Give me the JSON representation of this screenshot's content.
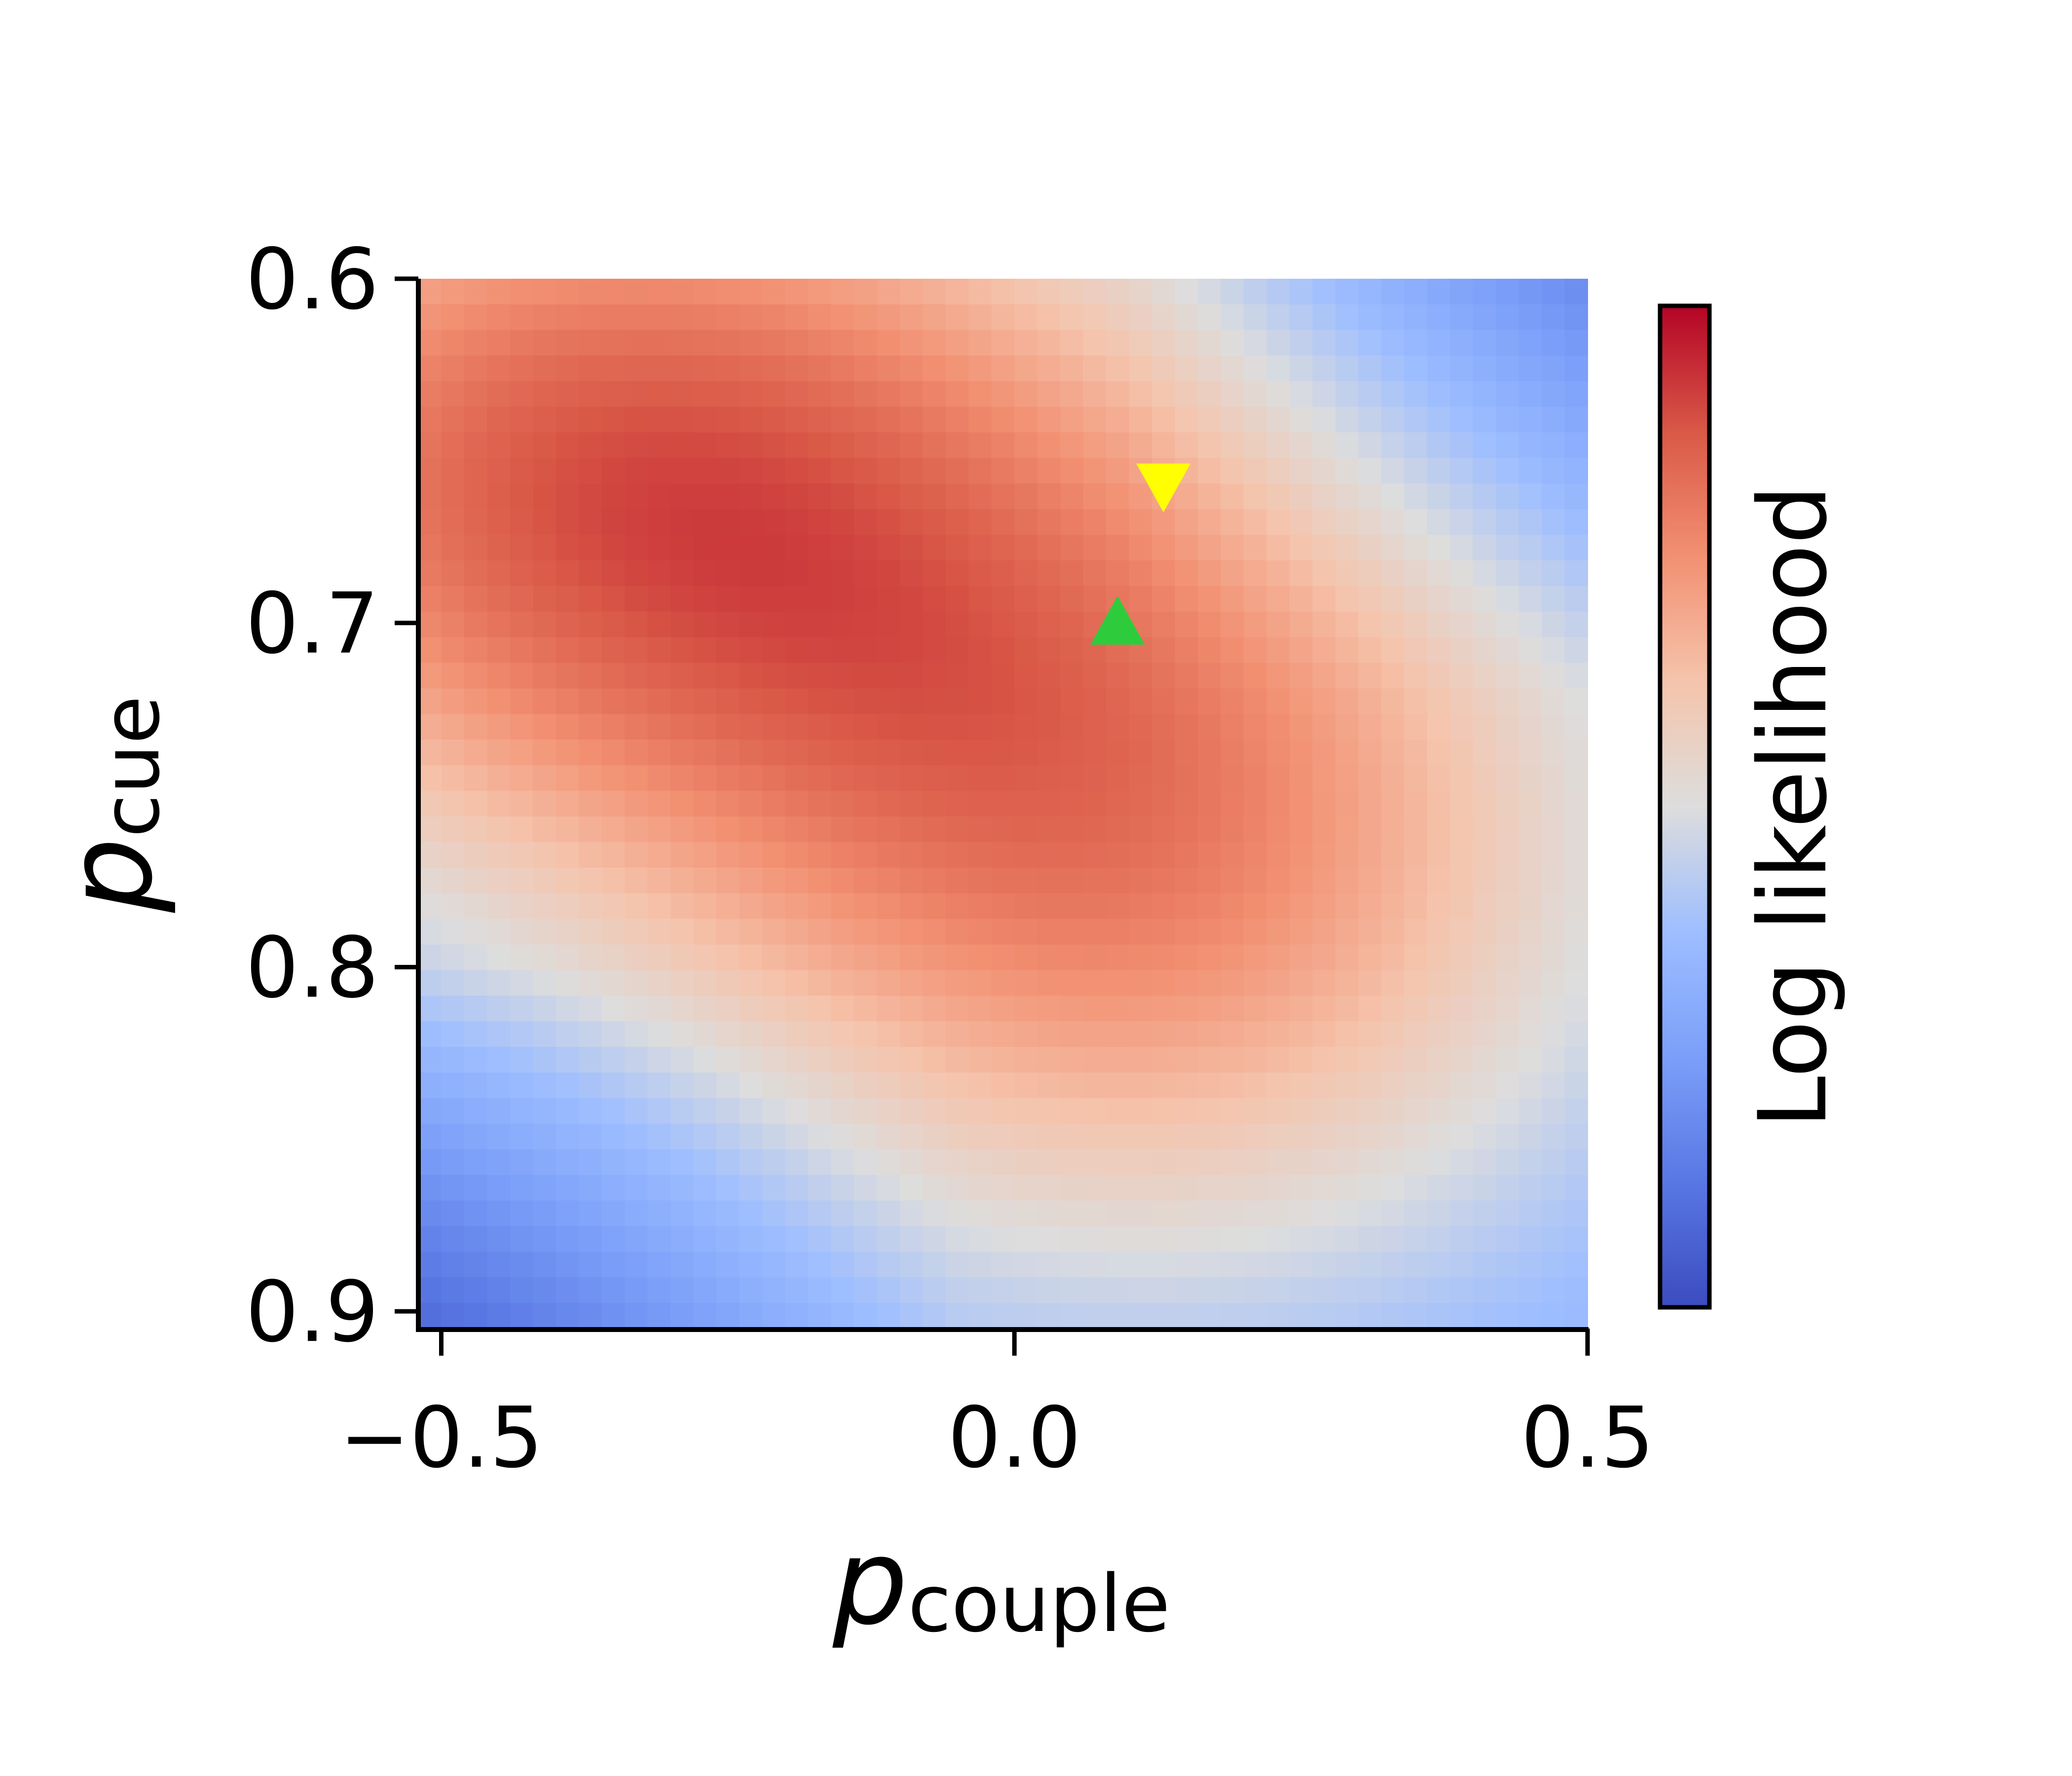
{
  "chart_data": {
    "type": "heatmap",
    "title": "",
    "xlabel": {
      "symbol": "p",
      "subscript": "couple"
    },
    "ylabel": {
      "symbol": "p",
      "subscript": "cue"
    },
    "xlim": [
      -0.52,
      0.5
    ],
    "ylim": [
      0.6,
      0.905
    ],
    "y_inverted": true,
    "x_ticks": [
      {
        "value": -0.5,
        "label": "−0.5"
      },
      {
        "value": 0.0,
        "label": "0.0"
      },
      {
        "value": 0.5,
        "label": "0.5"
      }
    ],
    "y_ticks": [
      {
        "value": 0.6,
        "label": "0.6"
      },
      {
        "value": 0.7,
        "label": "0.7"
      },
      {
        "value": 0.8,
        "label": "0.8"
      },
      {
        "value": 0.9,
        "label": "0.9"
      }
    ],
    "colormap": "coolwarm",
    "colorbar": {
      "label": "Log likelihood",
      "position": "right"
    },
    "grid": false,
    "surface": {
      "description": "Smooth log-likelihood surface on a regular grid",
      "grid_x": 51,
      "grid_y": 41,
      "peaks": [
        {
          "x": -0.37,
          "y": 0.655,
          "level": 0.83
        },
        {
          "x": 0.12,
          "y": 0.77,
          "level": 0.73
        }
      ]
    },
    "markers": [
      {
        "shape": "triangle-up",
        "color": "#2ecc3c",
        "x": 0.09,
        "y": 0.7
      },
      {
        "shape": "triangle-down",
        "color": "#ffff00",
        "x": 0.13,
        "y": 0.66
      }
    ]
  },
  "colors": {
    "axis": "#000000",
    "background": "#ffffff",
    "cmap_low": "#3b4cc0",
    "cmap_mid": "#dddddd",
    "cmap_high": "#b40426"
  }
}
